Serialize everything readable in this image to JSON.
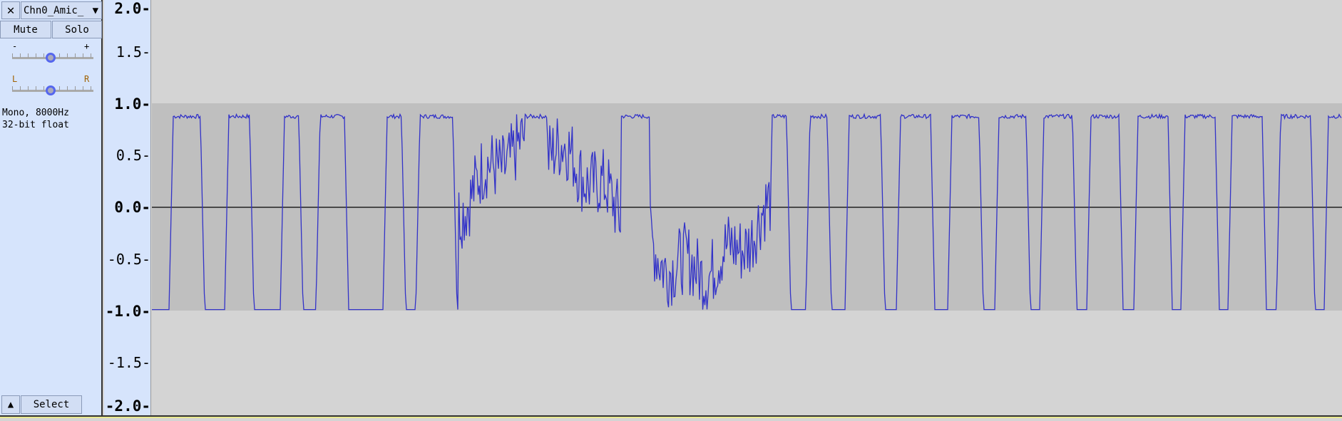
{
  "track": {
    "close_icon": "close-icon",
    "name": "Chn0_Amic_",
    "menu_icon": "triangle-down-icon",
    "mute_label": "Mute",
    "solo_label": "Solo",
    "gain": {
      "minus": "-",
      "plus": "+",
      "value_fraction": 0.5
    },
    "pan": {
      "left": "L",
      "right": "R",
      "value_fraction": 0.5
    },
    "format_line1": "Mono, 8000Hz",
    "format_line2": "32-bit float",
    "collapse_icon": "triangle-up-icon",
    "select_label": "Select"
  },
  "ruler": {
    "ticks": [
      "2.0",
      "1.5",
      "1.0",
      "0.5",
      "0.0",
      "-0.5",
      "-1.0",
      "-1.5",
      "-2.0"
    ]
  },
  "colors": {
    "waveform": "#3232c8",
    "clip_region": "#bfbfbf",
    "background": "#d4d4d4"
  }
}
